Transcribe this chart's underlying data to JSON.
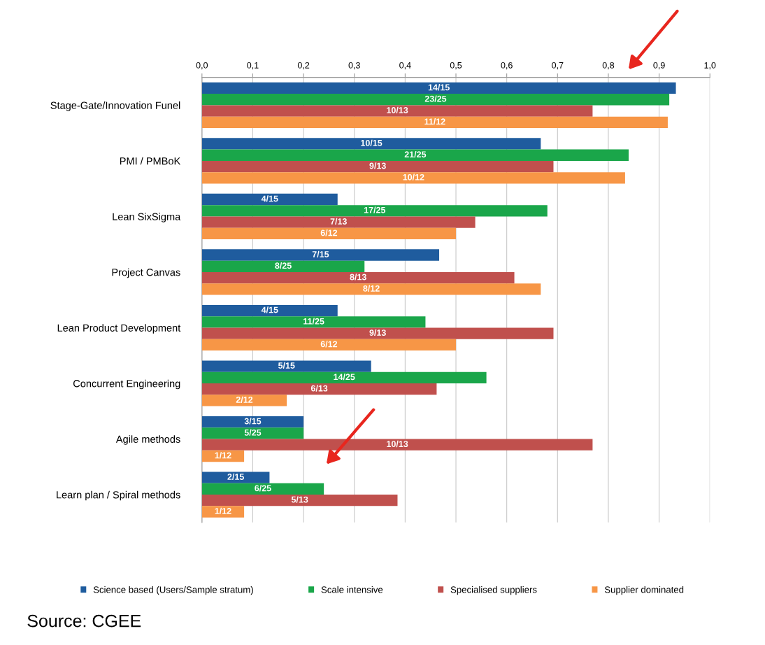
{
  "chart_data": {
    "type": "bar",
    "orientation": "horizontal",
    "categories": [
      "Stage-Gate/Innovation Funel",
      "PMI / PMBoK",
      "Lean SixSigma",
      "Project Canvas",
      "Lean Product Development",
      "Concurrent Engineering",
      "Agile methods",
      "Learn plan / Spiral methods"
    ],
    "series": [
      {
        "name": "Science based (Users/Sample stratum)",
        "color": "#1f5c9e",
        "values": [
          0.933,
          0.667,
          0.267,
          0.467,
          0.267,
          0.333,
          0.2,
          0.133
        ],
        "value_labels": [
          "14/15",
          "10/15",
          "4/15",
          "7/15",
          "4/15",
          "5/15",
          "3/15",
          "2/15"
        ]
      },
      {
        "name": "Scale intensive",
        "color": "#1aa64a",
        "values": [
          0.92,
          0.84,
          0.68,
          0.32,
          0.44,
          0.56,
          0.2,
          0.24
        ],
        "value_labels": [
          "23/25",
          "21/25",
          "17/25",
          "8/25",
          "11/25",
          "14/25",
          "5/25",
          "6/25"
        ]
      },
      {
        "name": "Specialised suppliers",
        "color": "#c0504d",
        "values": [
          0.769,
          0.692,
          0.538,
          0.615,
          0.692,
          0.462,
          0.769,
          0.385
        ],
        "value_labels": [
          "10/13",
          "9/13",
          "7/13",
          "8/13",
          "9/13",
          "6/13",
          "10/13",
          "5/13"
        ]
      },
      {
        "name": "Supplier dominated",
        "color": "#f79646",
        "values": [
          0.917,
          0.833,
          0.5,
          0.667,
          0.5,
          0.167,
          0.083,
          0.083
        ],
        "value_labels": [
          "11/12",
          "10/12",
          "6/12",
          "8/12",
          "6/12",
          "2/12",
          "1/12",
          "1/12"
        ]
      }
    ],
    "xlim": [
      0,
      1
    ],
    "xticks": [
      {
        "value": 0,
        "label": "0,0"
      },
      {
        "value": 0.1,
        "label": "0,1"
      },
      {
        "value": 0.2,
        "label": "0,2"
      },
      {
        "value": 0.3,
        "label": "0,3"
      },
      {
        "value": 0.4,
        "label": "0,4"
      },
      {
        "value": 0.5,
        "label": "0,5"
      },
      {
        "value": 0.6,
        "label": "0,6"
      },
      {
        "value": 0.7,
        "label": "0,7"
      },
      {
        "value": 0.8,
        "label": "0,8"
      },
      {
        "value": 0.9,
        "label": "0,9"
      },
      {
        "value": 1,
        "label": "1,0"
      }
    ],
    "grid": "x",
    "legend": "bottom",
    "annotations": [
      "Source: CGEE"
    ]
  }
}
